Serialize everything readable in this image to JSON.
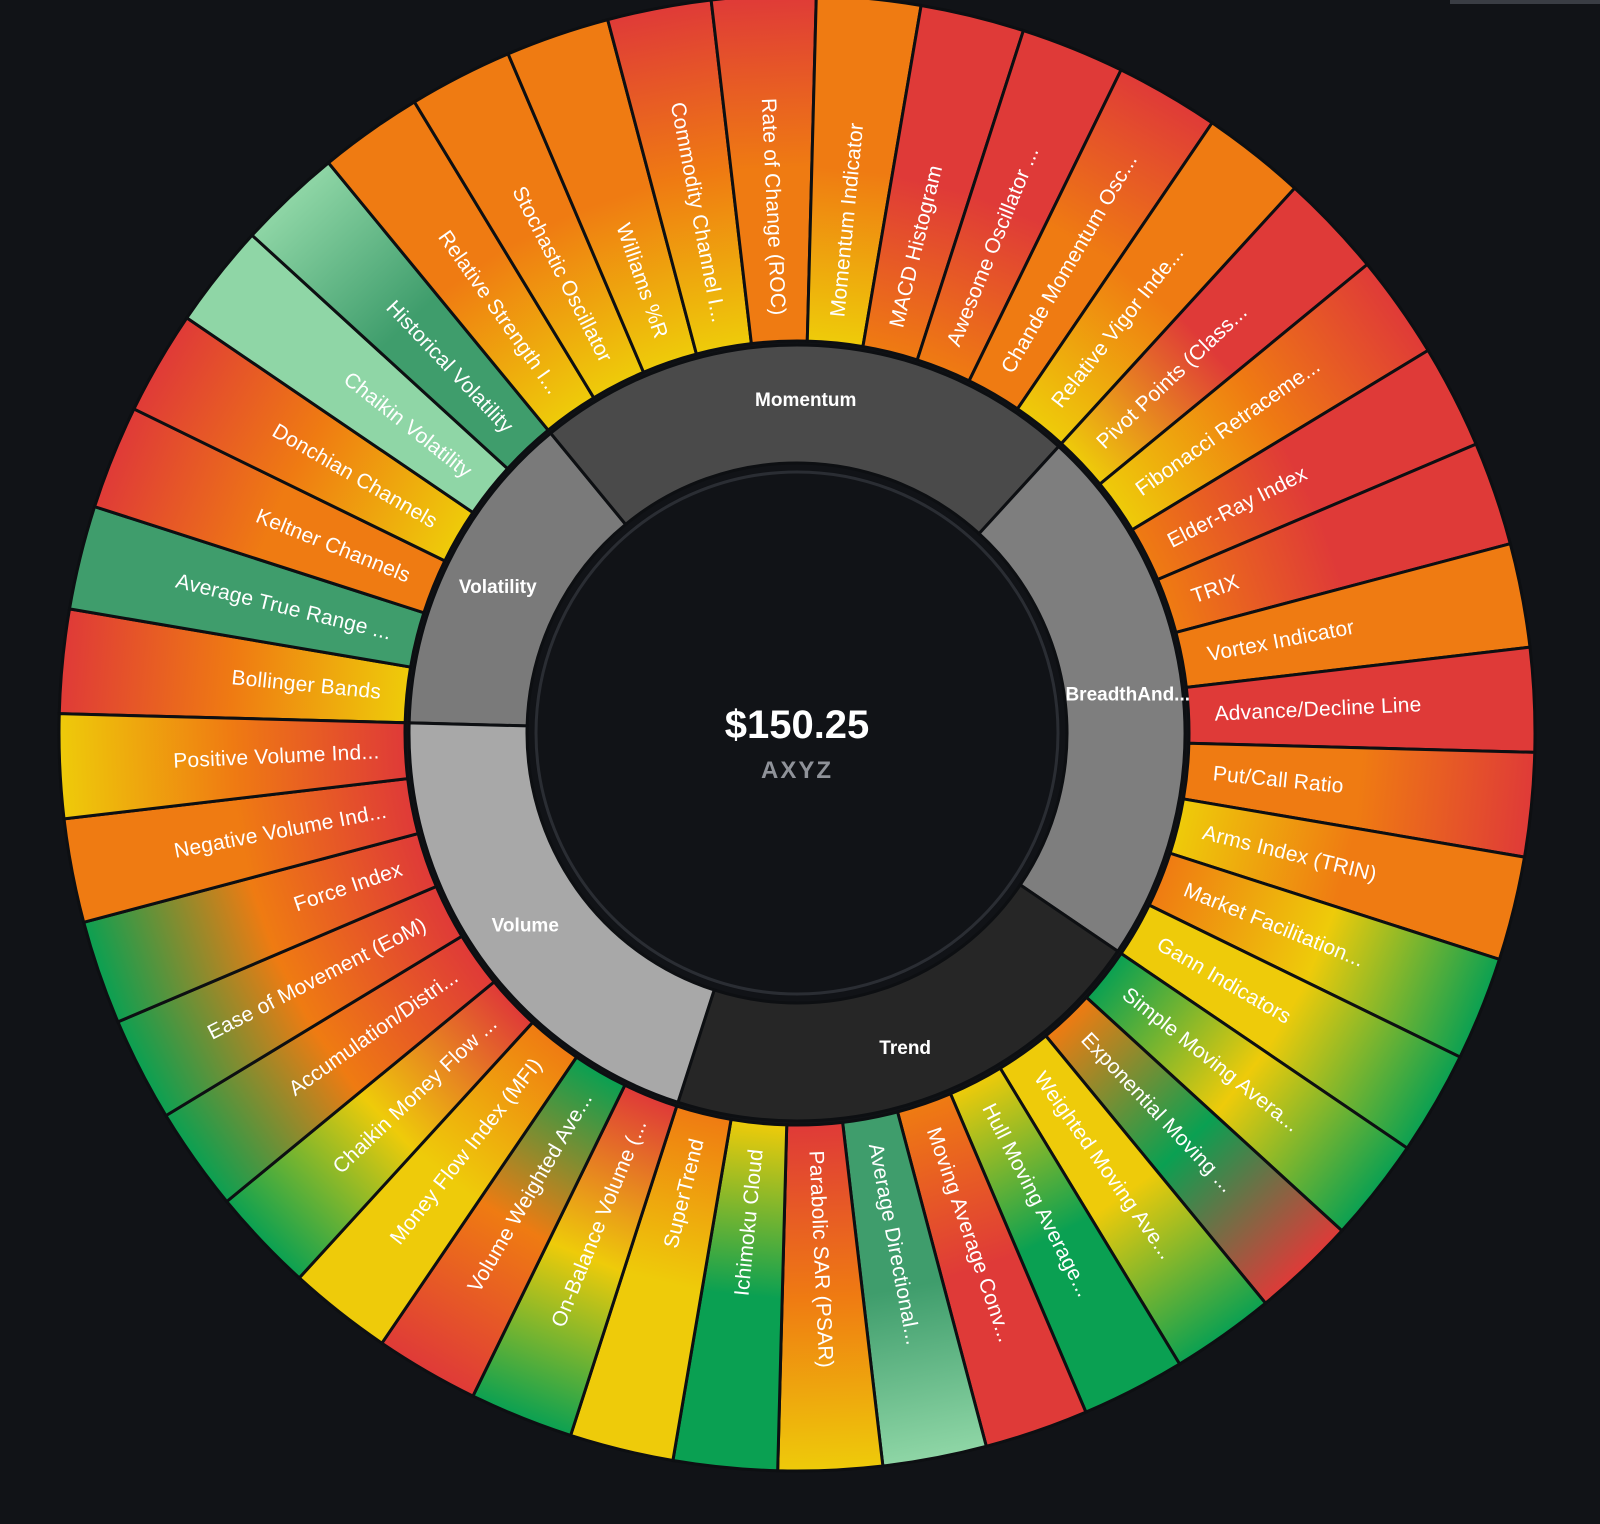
{
  "center": {
    "price": "$150.25",
    "ticker": "AXYZ"
  },
  "colors": {
    "background": "#111317",
    "separator": "#0d0f12",
    "red": "#df3a38",
    "orange": "#ef7b12",
    "yellow": "#eecb0a",
    "light_green": "#8fd6a6",
    "green": "#0aa052",
    "teal_green": "#3f9d6c"
  },
  "chart_data": {
    "type": "sunburst",
    "categories": [
      {
        "name": "Volatility",
        "shade": "#7a7a7a",
        "children": [
          "Bollinger Bands",
          "Average True Range ...",
          "Keltner Channels",
          "Donchian Channels",
          "Chaikin Volatility",
          "Historical Volatility"
        ]
      },
      {
        "name": "Momentum",
        "shade": "#4a4a4a",
        "children": [
          "Relative Strength I...",
          "Stochastic Oscillator",
          "Williams %R",
          "Commodity Channel I...",
          "Rate of Change (ROC)",
          "Momentum Indicator",
          "MACD Histogram",
          "Awesome Oscillator ...",
          "Chande Momentum Osc...",
          "Relative Vigor Inde..."
        ]
      },
      {
        "name": "BreadthAnd...",
        "shade": "#7e7e7e",
        "children": [
          "Pivot Points (Class...",
          "Fibonacci Retraceme...",
          "Elder-Ray Index",
          "TRIX",
          "Vortex Indicator",
          "Advance/Decline Line",
          "Put/Call Ratio",
          "Arms Index (TRIN)",
          "Market Facilitation...",
          "Gann Indicators"
        ]
      },
      {
        "name": "Trend",
        "shade": "#262626",
        "children": [
          "Simple Moving Avera...",
          "Exponential Moving ...",
          "Weighted Moving Ave...",
          "Hull Moving Average...",
          "Moving Average Conv...",
          "Average Directional...",
          "Parabolic SAR (PSAR)",
          "Ichimoku Cloud",
          "SuperTrend"
        ]
      },
      {
        "name": "Volume",
        "shade": "#a8a8a8",
        "children": [
          "On-Balance Volume (...",
          "Volume Weighted Ave...",
          "Money Flow Index (MFI)",
          "Chaikin Money Flow ...",
          "Accumulation/Distri...",
          "Ease of Movement (EoM)",
          "Force Index",
          "Negative Volume Ind...",
          "Positive Volume Ind..."
        ]
      }
    ],
    "leaf_signals": {
      "Bollinger Bands": [
        "red",
        "orange",
        "yellow"
      ],
      "Average True Range ...": [
        "teal_green",
        "teal_green",
        "teal_green"
      ],
      "Keltner Channels": [
        "red",
        "orange",
        "orange"
      ],
      "Donchian Channels": [
        "red",
        "orange",
        "yellow"
      ],
      "Chaikin Volatility": [
        "light_green",
        "light_green",
        "light_green"
      ],
      "Historical Volatility": [
        "light_green",
        "teal_green",
        "teal_green"
      ],
      "Relative Strength I...": [
        "orange",
        "orange",
        "yellow"
      ],
      "Stochastic Oscillator": [
        "orange",
        "orange",
        "yellow"
      ],
      "Williams %R": [
        "orange",
        "orange",
        "yellow"
      ],
      "Commodity Channel I...": [
        "red",
        "orange",
        "yellow"
      ],
      "Rate of Change (ROC)": [
        "red",
        "orange",
        "orange"
      ],
      "Momentum Indicator": [
        "orange",
        "orange",
        "yellow"
      ],
      "MACD Histogram": [
        "red",
        "red",
        "orange"
      ],
      "Awesome Oscillator ...": [
        "red",
        "red",
        "orange"
      ],
      "Chande Momentum Osc...": [
        "red",
        "orange",
        "orange"
      ],
      "Relative Vigor Inde...": [
        "orange",
        "orange",
        "yellow"
      ],
      "Pivot Points (Class...": [
        "red",
        "red",
        "yellow"
      ],
      "Fibonacci Retraceme...": [
        "red",
        "orange",
        "yellow"
      ],
      "Elder-Ray Index": [
        "red",
        "red",
        "orange"
      ],
      "TRIX": [
        "red",
        "red",
        "orange"
      ],
      "Vortex Indicator": [
        "orange",
        "orange",
        "orange"
      ],
      "Advance/Decline Line": [
        "red",
        "red",
        "red"
      ],
      "Put/Call Ratio": [
        "red",
        "orange",
        "orange"
      ],
      "Arms Index (TRIN)": [
        "orange",
        "orange",
        "yellow"
      ],
      "Market Facilitation...": [
        "green",
        "yellow",
        "orange"
      ],
      "Gann Indicators": [
        "green",
        "yellow",
        "yellow"
      ],
      "Simple Moving Avera...": [
        "green",
        "yellow",
        "green"
      ],
      "Exponential Moving ...": [
        "red",
        "green",
        "orange"
      ],
      "Weighted Moving Ave...": [
        "green",
        "yellow",
        "yellow"
      ],
      "Hull Moving Average...": [
        "green",
        "green",
        "yellow"
      ],
      "Moving Average Conv...": [
        "red",
        "red",
        "orange"
      ],
      "Average Directional...": [
        "light_green",
        "teal_green",
        "teal_green"
      ],
      "Parabolic SAR (PSAR)": [
        "yellow",
        "orange",
        "red"
      ],
      "Ichimoku Cloud": [
        "green",
        "green",
        "yellow"
      ],
      "SuperTrend": [
        "yellow",
        "yellow",
        "orange"
      ],
      "On-Balance Volume (...": [
        "green",
        "yellow",
        "red"
      ],
      "Volume Weighted Ave...": [
        "red",
        "orange",
        "green"
      ],
      "Money Flow Index (MFI)": [
        "yellow",
        "yellow",
        "orange"
      ],
      "Chaikin Money Flow ...": [
        "green",
        "yellow",
        "red"
      ],
      "Accumulation/Distri...": [
        "green",
        "orange",
        "red"
      ],
      "Ease of Movement (EoM)": [
        "green",
        "orange",
        "red"
      ],
      "Force Index": [
        "green",
        "orange",
        "red"
      ],
      "Negative Volume Ind...": [
        "orange",
        "orange",
        "red"
      ],
      "Positive Volume Ind...": [
        "yellow",
        "orange",
        "red"
      ]
    }
  }
}
